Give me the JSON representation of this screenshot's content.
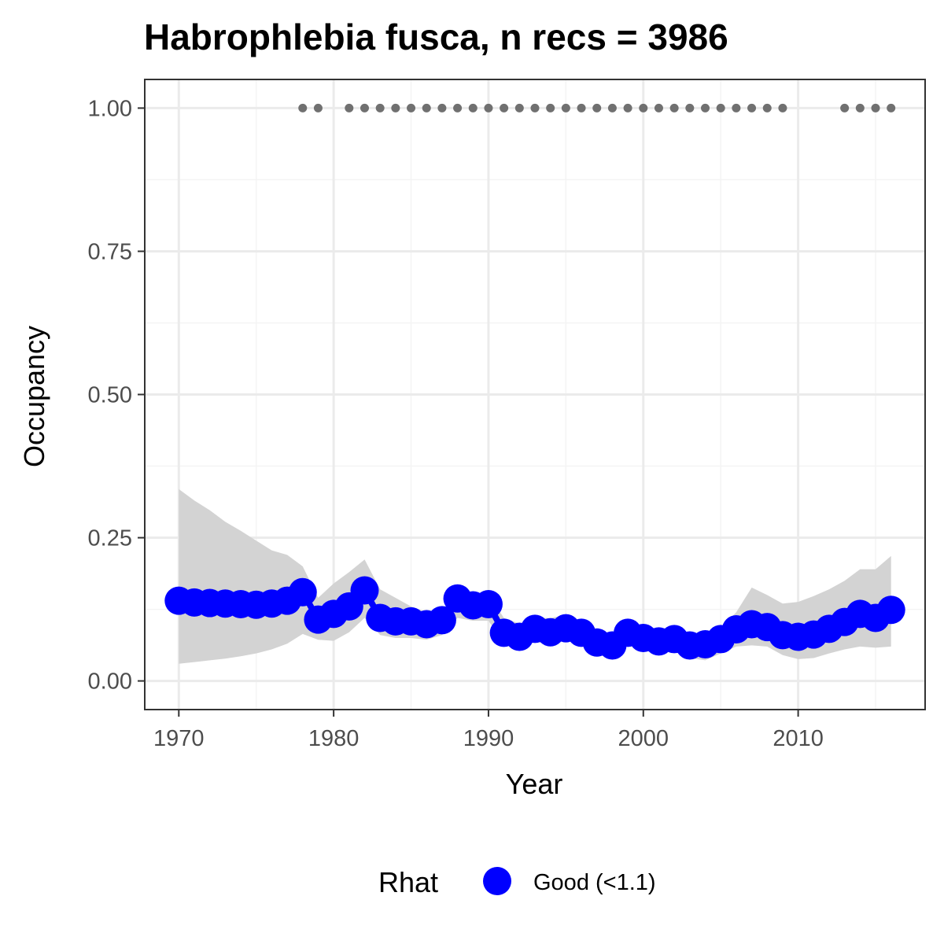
{
  "chart_data": {
    "type": "line",
    "title": "Habrophlebia fusca, n recs = 3986",
    "xlabel": "Year",
    "ylabel": "Occupancy",
    "xlim": [
      1967.8,
      2018.2
    ],
    "ylim": [
      -0.05,
      1.05
    ],
    "x_ticks": [
      1970,
      1980,
      1990,
      2000,
      2010
    ],
    "y_ticks": [
      0.0,
      0.25,
      0.5,
      0.75,
      1.0
    ],
    "y_tick_labels": [
      "0.00",
      "0.25",
      "0.50",
      "0.75",
      "1.00"
    ],
    "grid": true,
    "colors": {
      "series": "#0000ff",
      "ribbon": "#d3d3d3",
      "records": "#707070",
      "grid_major": "#ebebeb",
      "grid_minor": "#f4f4f4",
      "panel_border": "#333333"
    },
    "series": [
      {
        "x": [
          1970,
          1971,
          1972,
          1973,
          1974,
          1975,
          1976,
          1977,
          1978,
          1979,
          1980,
          1981,
          1982,
          1983,
          1984,
          1985,
          1986,
          1987,
          1988,
          1989,
          1990,
          1991,
          1992,
          1993,
          1994,
          1995,
          1996,
          1997,
          1998,
          1999,
          2000,
          2001,
          2002,
          2003,
          2004,
          2005,
          2006,
          2007,
          2008,
          2009,
          2010,
          2011,
          2012,
          2013,
          2014,
          2015,
          2016
        ],
        "y": [
          0.14,
          0.137,
          0.136,
          0.135,
          0.134,
          0.133,
          0.135,
          0.14,
          0.155,
          0.107,
          0.117,
          0.13,
          0.158,
          0.11,
          0.104,
          0.104,
          0.099,
          0.106,
          0.144,
          0.132,
          0.134,
          0.084,
          0.077,
          0.091,
          0.085,
          0.092,
          0.084,
          0.067,
          0.062,
          0.084,
          0.075,
          0.069,
          0.073,
          0.062,
          0.064,
          0.073,
          0.09,
          0.099,
          0.094,
          0.08,
          0.077,
          0.081,
          0.091,
          0.103,
          0.117,
          0.11,
          0.124
        ]
      }
    ],
    "ribbon": {
      "upper": [
        0.335,
        0.315,
        0.298,
        0.278,
        0.262,
        0.245,
        0.228,
        0.22,
        0.2,
        0.145,
        0.17,
        0.19,
        0.212,
        0.16,
        0.145,
        0.13,
        0.12,
        0.12,
        0.16,
        0.155,
        0.15,
        0.11,
        0.1,
        0.11,
        0.11,
        0.115,
        0.105,
        0.085,
        0.08,
        0.1,
        0.095,
        0.09,
        0.095,
        0.082,
        0.082,
        0.092,
        0.12,
        0.163,
        0.15,
        0.135,
        0.138,
        0.148,
        0.16,
        0.175,
        0.195,
        0.195,
        0.218
      ],
      "lower": [
        0.03,
        0.033,
        0.036,
        0.039,
        0.043,
        0.048,
        0.055,
        0.065,
        0.082,
        0.072,
        0.07,
        0.085,
        0.11,
        0.08,
        0.075,
        0.075,
        0.072,
        0.08,
        0.11,
        0.105,
        0.105,
        0.065,
        0.058,
        0.068,
        0.065,
        0.07,
        0.062,
        0.05,
        0.045,
        0.063,
        0.055,
        0.05,
        0.052,
        0.04,
        0.036,
        0.048,
        0.06,
        0.062,
        0.06,
        0.045,
        0.038,
        0.04,
        0.048,
        0.055,
        0.06,
        0.058,
        0.06
      ]
    },
    "record_years": [
      1978,
      1979,
      1981,
      1982,
      1983,
      1984,
      1985,
      1986,
      1987,
      1988,
      1989,
      1990,
      1991,
      1992,
      1993,
      1994,
      1995,
      1996,
      1997,
      1998,
      1999,
      2000,
      2001,
      2002,
      2003,
      2004,
      2005,
      2006,
      2007,
      2008,
      2009,
      2013,
      2014,
      2015,
      2016
    ],
    "record_y": 1.0,
    "legend": {
      "position": "bottom",
      "title": "Rhat",
      "entries": [
        "Good (<1.1)"
      ]
    }
  }
}
